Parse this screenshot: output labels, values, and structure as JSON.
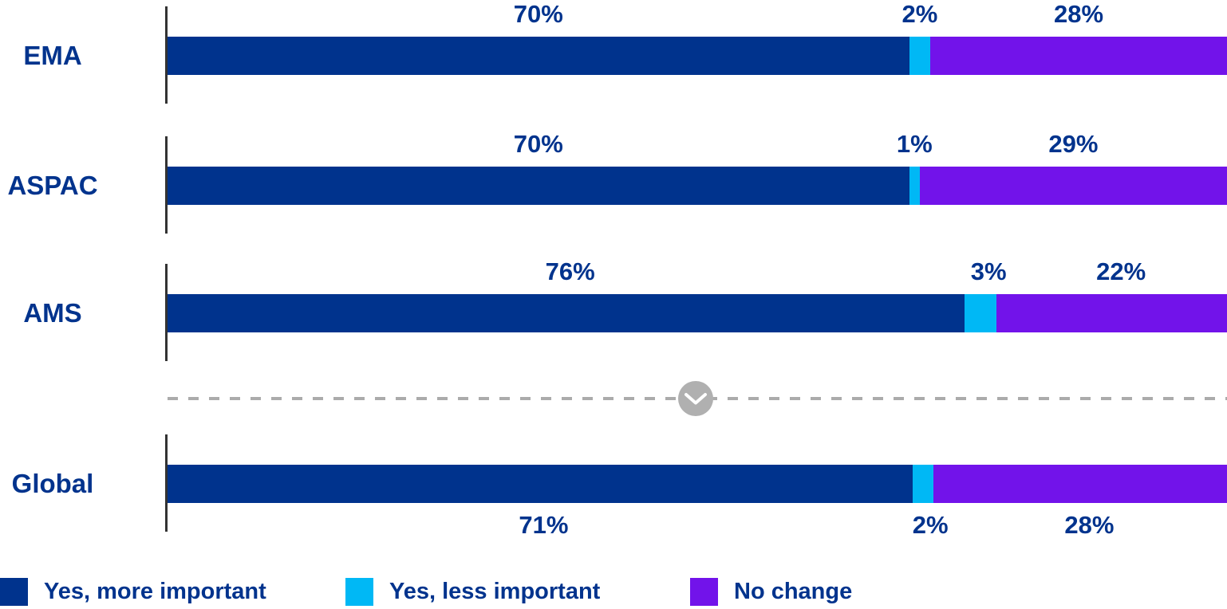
{
  "chart_data": {
    "type": "bar",
    "variant": "horizontal-stacked",
    "categories": [
      "EMA",
      "ASPAC",
      "AMS",
      "Global"
    ],
    "series": [
      {
        "name": "Yes, more important",
        "color": "#00338D",
        "values": [
          70,
          70,
          76,
          71
        ]
      },
      {
        "name": "Yes, less important",
        "color": "#00B8F5",
        "values": [
          2,
          1,
          3,
          2
        ]
      },
      {
        "name": "No change",
        "color": "#7213EA",
        "values": [
          28,
          29,
          22,
          28
        ]
      }
    ],
    "value_label_format": "{v}%",
    "value_label_positions": [
      "above",
      "above",
      "above",
      "below"
    ],
    "xlim": [
      0,
      100
    ],
    "grid": false,
    "title": "",
    "xlabel": "",
    "ylabel": "",
    "legend_position": "bottom",
    "separator_after_index": 2
  },
  "separator": {
    "icon": "chevron-down-icon",
    "line_color": "#ABABAB",
    "circle_color": "#B0B0B0",
    "chevron_color": "#FFFFFF"
  },
  "colors": {
    "category_text": "#00338D",
    "value_text": "#00338D",
    "axis_line": "#333333",
    "background": "#FFFFFF"
  }
}
